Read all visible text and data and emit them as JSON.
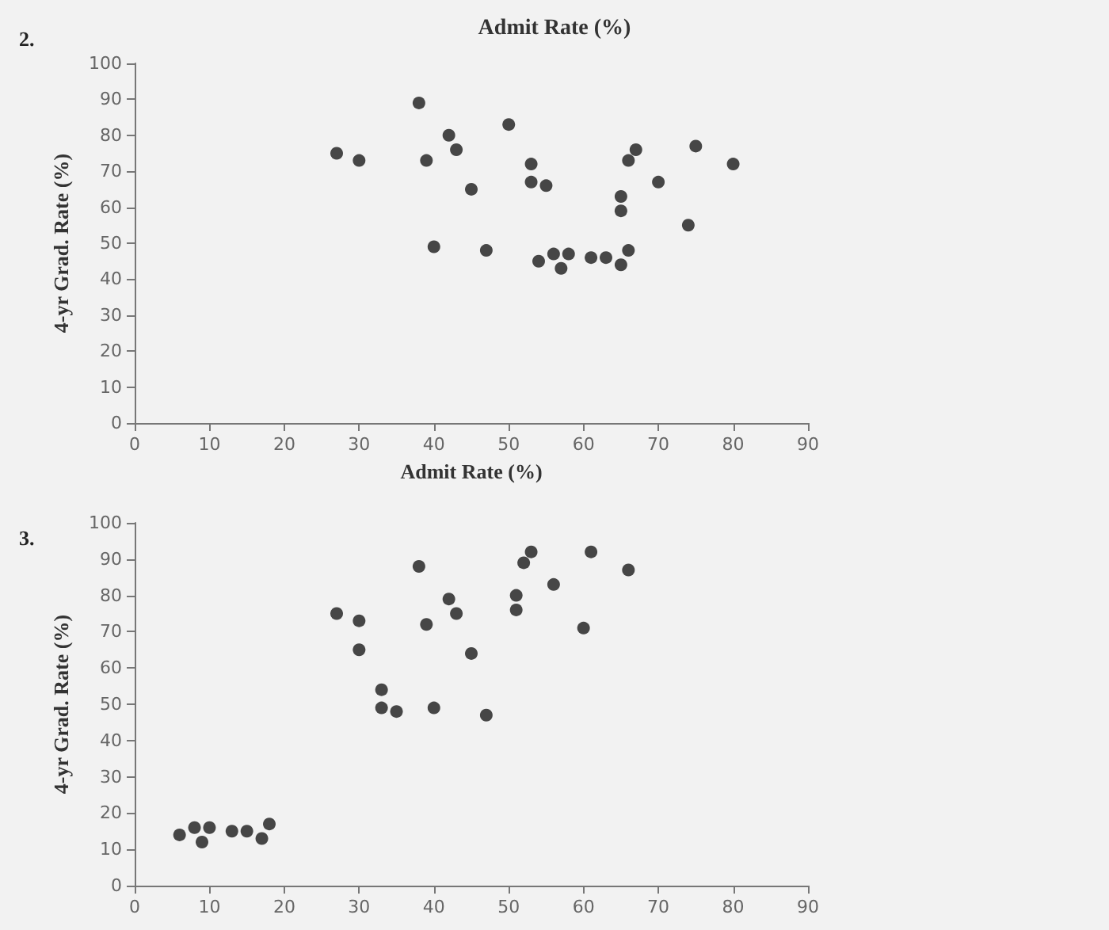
{
  "chart_data": [
    {
      "type": "scatter",
      "title": "Admit Rate (%)",
      "xlabel": "Admit Rate (%)",
      "ylabel": "4-yr Grad. Rate (%)",
      "annotations": [
        "2."
      ],
      "x": [
        27,
        30,
        38,
        39,
        40,
        42,
        43,
        45,
        47,
        50,
        53,
        53,
        54,
        55,
        56,
        57,
        58,
        61,
        63,
        65,
        65,
        65,
        66,
        66,
        67,
        70,
        74,
        75,
        80
      ],
      "values": [
        75,
        73,
        89,
        73,
        49,
        80,
        76,
        65,
        48,
        83,
        72,
        67,
        45,
        66,
        47,
        43,
        47,
        46,
        46,
        44,
        63,
        59,
        48,
        73,
        76,
        67,
        55,
        77,
        72
      ],
      "color": "#1a1a1a",
      "marker": "circle",
      "grid": false,
      "xlim": [
        0,
        90
      ],
      "xticks": [
        0,
        10,
        20,
        30,
        40,
        50,
        60,
        70,
        80,
        90
      ],
      "ylim": [
        0,
        100
      ],
      "yticks": [
        0,
        10,
        20,
        30,
        40,
        50,
        60,
        70,
        80,
        90,
        100
      ]
    },
    {
      "type": "scatter",
      "ylabel": "4-yr Grad. Rate (%)",
      "annotations": [
        "3."
      ],
      "x": [
        6,
        8,
        9,
        10,
        13,
        15,
        17,
        18,
        27,
        30,
        30,
        33,
        33,
        35,
        38,
        39,
        40,
        42,
        43,
        45,
        47,
        51,
        51,
        52,
        53,
        56,
        60,
        61,
        66
      ],
      "values": [
        14,
        16,
        12,
        16,
        15,
        15,
        13,
        17,
        75,
        73,
        65,
        54,
        49,
        48,
        88,
        72,
        49,
        79,
        75,
        64,
        47,
        80,
        76,
        89,
        92,
        83,
        71,
        92,
        87
      ],
      "color": "#1a1a1a",
      "marker": "circle",
      "grid": false,
      "xlim": [
        0,
        90
      ],
      "xticks": [
        0,
        10,
        20,
        30,
        40,
        50,
        60,
        70,
        80,
        90
      ],
      "ylim": [
        0,
        100
      ],
      "yticks": [
        0,
        10,
        20,
        30,
        40,
        50,
        60,
        70,
        80,
        90,
        100
      ]
    }
  ]
}
